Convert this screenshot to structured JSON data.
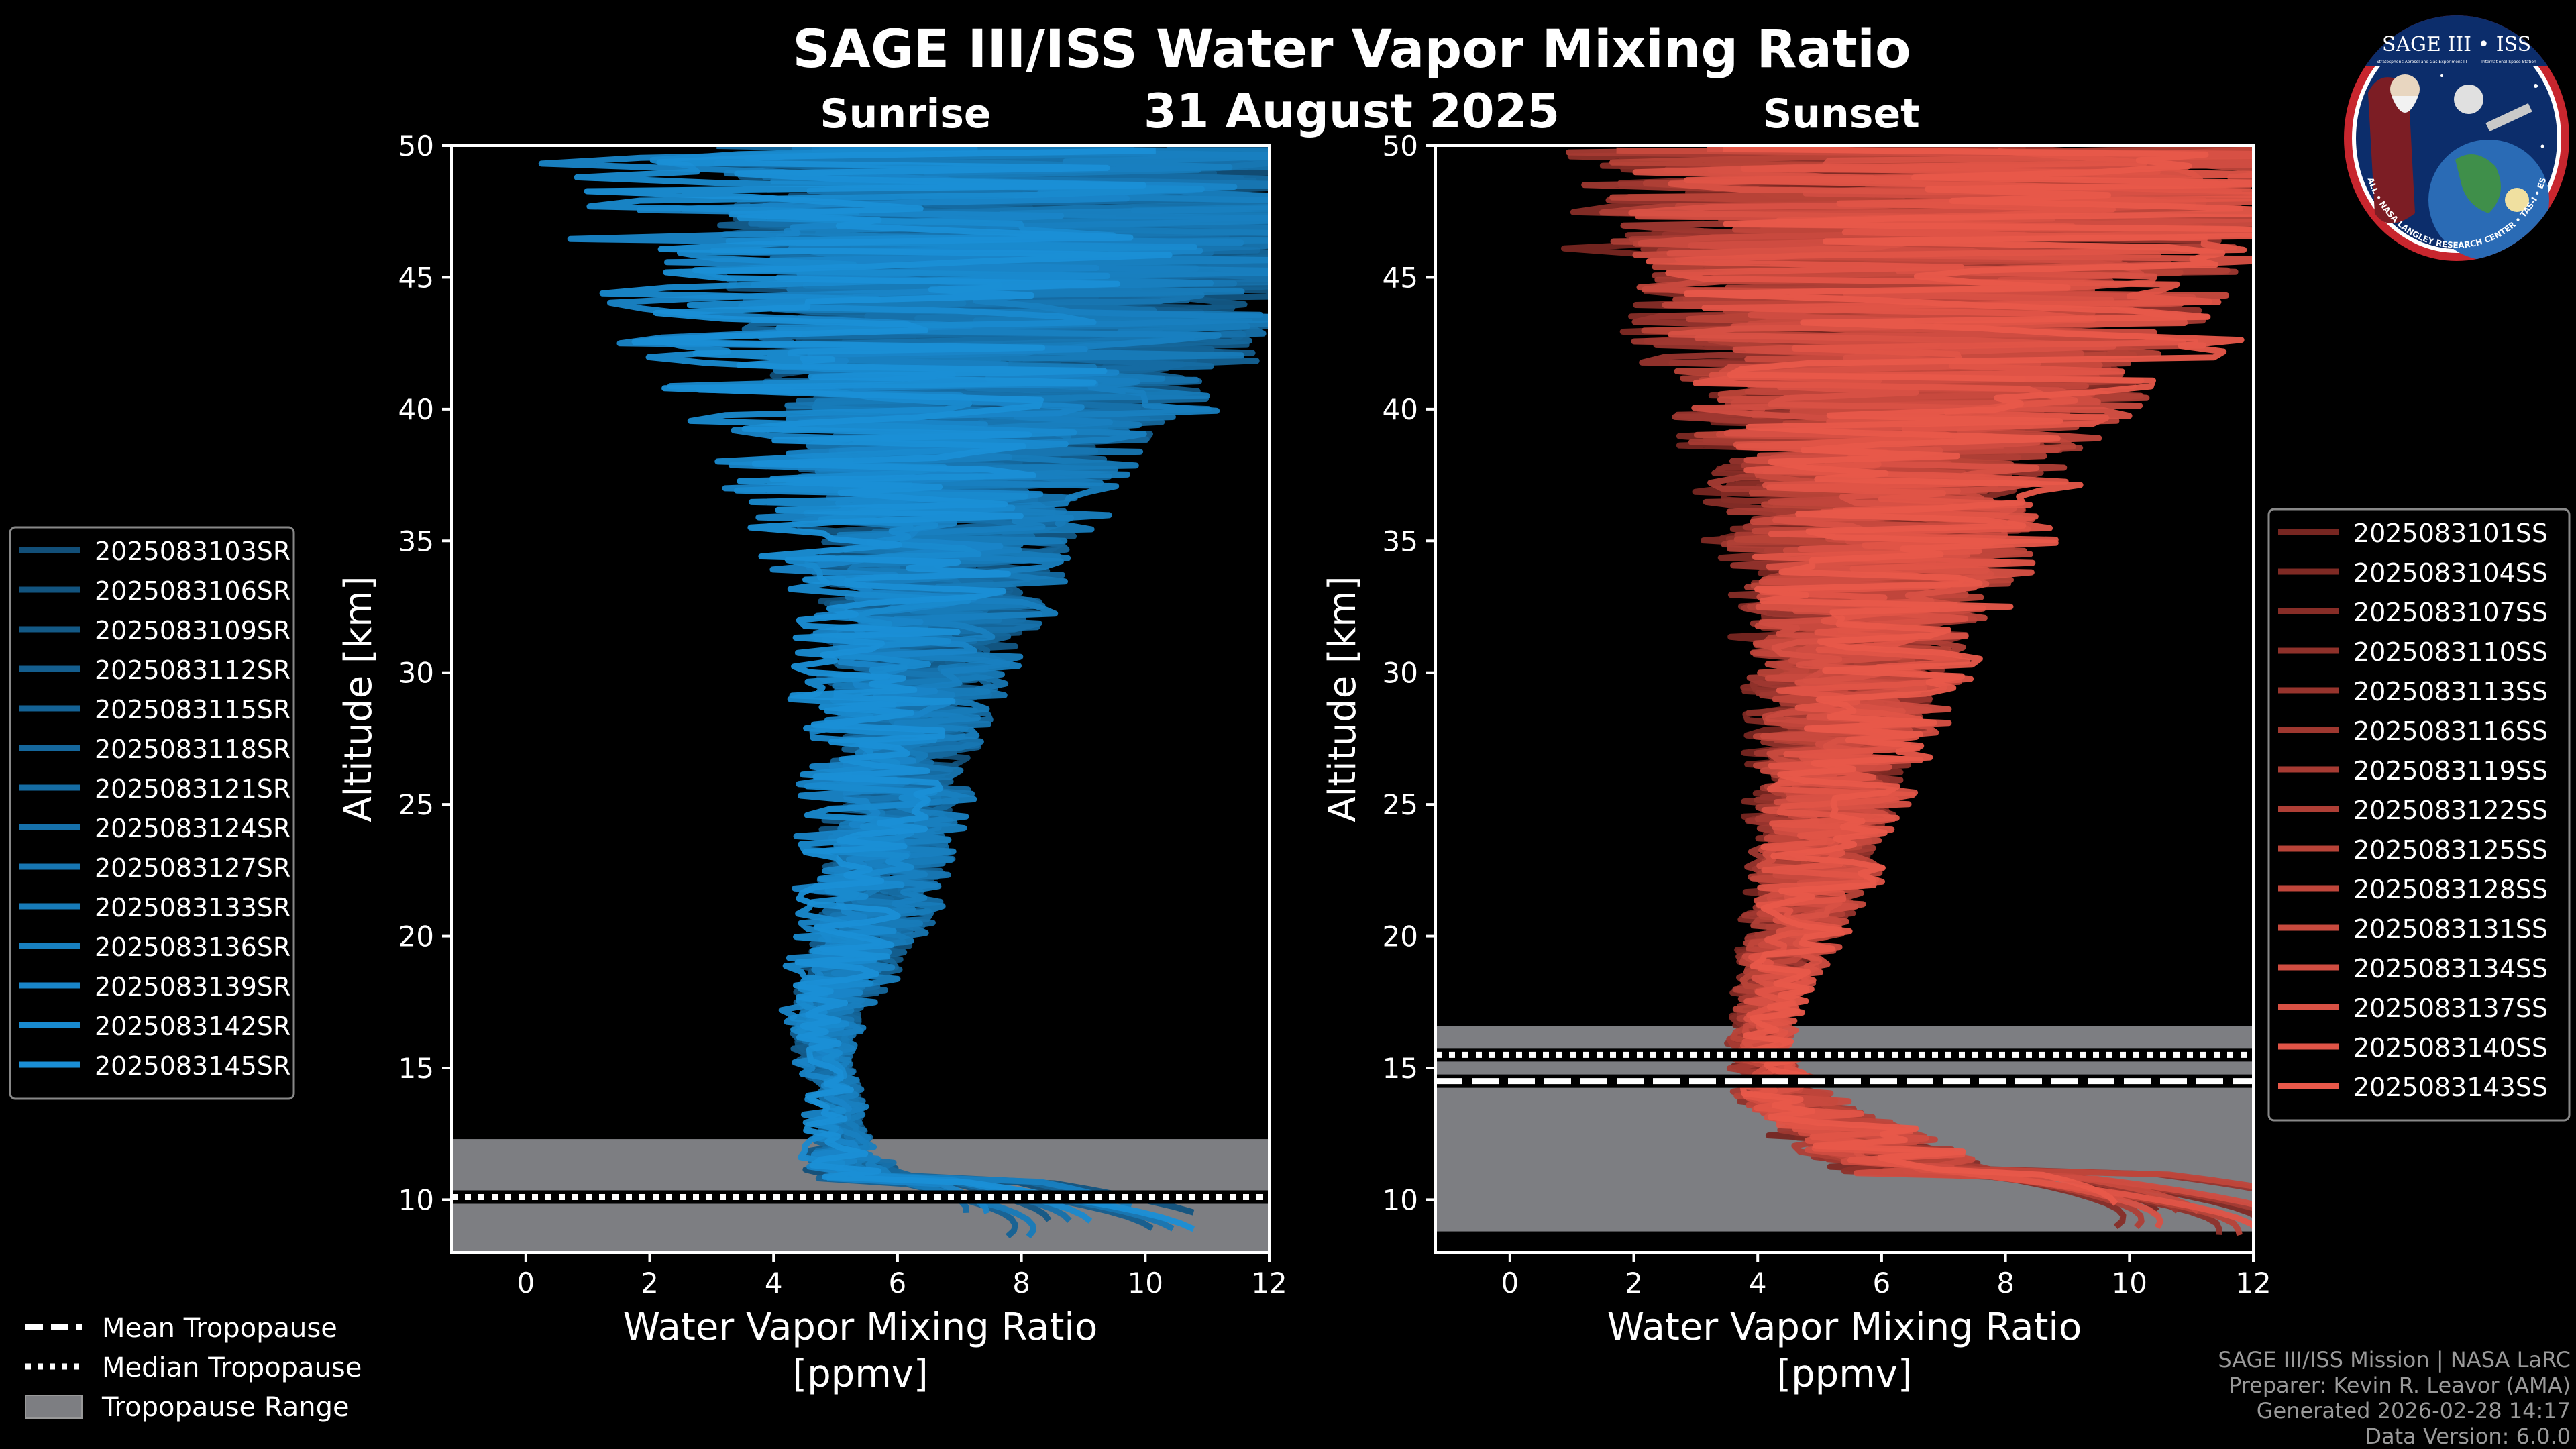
{
  "figure": {
    "title": "SAGE III/ISS Water Vapor Mixing Ratio",
    "date": "31 August 2025",
    "footer": [
      "SAGE III/ISS Mission | NASA LaRC",
      "Preparer: Kevin R. Leavor (AMA)",
      "Generated 2026-02-28 14:17",
      "Data Version: 6.0.0"
    ],
    "logo": {
      "title": "SAGE III • ISS",
      "subtitle_left": "Stratospheric Aerosol and Gas Experiment III",
      "subtitle_right": "International Space Station",
      "ring_text": "BALL • NASA LANGLEY RESEARCH CENTER • TAS-I • ESA"
    }
  },
  "colors": {
    "background": "#000000",
    "sunrise": "#1a8fd6",
    "sunset": "#e8584a",
    "tropopause_band": "#7d7e82",
    "axes": "#ffffff"
  },
  "chart_data": [
    {
      "type": "line",
      "panel": "Sunrise",
      "title": "Sunrise",
      "xlabel": "Water Vapor Mixing Ratio\n[ppmv]",
      "ylabel": "Altitude [km]",
      "xlim": [
        -1.2,
        12
      ],
      "ylim": [
        8,
        50
      ],
      "xticks": [
        0,
        2,
        4,
        6,
        8,
        10,
        12
      ],
      "yticks": [
        10,
        15,
        20,
        25,
        30,
        35,
        40,
        45,
        50
      ],
      "profile_mode": "shaded-series",
      "tropopause": {
        "min": 8,
        "max": 12.3,
        "mean": 10.1,
        "median": 10.1
      },
      "legend_position": "left",
      "series": [
        {
          "name": "2025083103SR"
        },
        {
          "name": "2025083106SR"
        },
        {
          "name": "2025083109SR"
        },
        {
          "name": "2025083112SR"
        },
        {
          "name": "2025083115SR"
        },
        {
          "name": "2025083118SR"
        },
        {
          "name": "2025083121SR"
        },
        {
          "name": "2025083124SR"
        },
        {
          "name": "2025083127SR"
        },
        {
          "name": "2025083133SR"
        },
        {
          "name": "2025083136SR"
        },
        {
          "name": "2025083139SR"
        },
        {
          "name": "2025083142SR"
        },
        {
          "name": "2025083145SR"
        }
      ],
      "median_profile": {
        "alt": [
          8.8,
          10,
          11,
          12,
          13,
          14,
          15,
          16,
          17,
          18,
          19,
          20,
          22,
          25,
          28,
          30,
          32,
          35,
          38,
          40,
          42,
          45,
          48,
          50
        ],
        "x": [
          9.0,
          6.5,
          5.2,
          5.0,
          5.0,
          5.0,
          4.8,
          4.7,
          4.8,
          5.0,
          5.2,
          5.4,
          5.6,
          5.8,
          6.0,
          6.0,
          6.2,
          6.4,
          6.6,
          6.8,
          7.0,
          7.2,
          7.4,
          7.5
        ],
        "spread": [
          0.6,
          1.2,
          0.8,
          0.5,
          0.4,
          0.4,
          0.4,
          0.5,
          0.6,
          0.7,
          0.8,
          0.9,
          1.0,
          1.1,
          1.3,
          1.5,
          1.8,
          2.2,
          2.8,
          3.5,
          4.2,
          5.0,
          5.5,
          6.0
        ]
      }
    },
    {
      "type": "line",
      "panel": "Sunset",
      "title": "Sunset",
      "xlabel": "Water Vapor Mixing Ratio\n[ppmv]",
      "ylabel": "Altitude [km]",
      "xlim": [
        -1.2,
        12
      ],
      "ylim": [
        8,
        50
      ],
      "xticks": [
        0,
        2,
        4,
        6,
        8,
        10,
        12
      ],
      "yticks": [
        10,
        15,
        20,
        25,
        30,
        35,
        40,
        45,
        50
      ],
      "profile_mode": "shaded-series",
      "tropopause": {
        "min": 8.8,
        "max": 16.6,
        "mean": 14.5,
        "median": 15.5
      },
      "legend_position": "right",
      "series": [
        {
          "name": "2025083101SS"
        },
        {
          "name": "2025083104SS"
        },
        {
          "name": "2025083107SS"
        },
        {
          "name": "2025083110SS"
        },
        {
          "name": "2025083113SS"
        },
        {
          "name": "2025083116SS"
        },
        {
          "name": "2025083119SS"
        },
        {
          "name": "2025083122SS"
        },
        {
          "name": "2025083125SS"
        },
        {
          "name": "2025083128SS"
        },
        {
          "name": "2025083131SS"
        },
        {
          "name": "2025083134SS"
        },
        {
          "name": "2025083137SS"
        },
        {
          "name": "2025083140SS"
        },
        {
          "name": "2025083143SS"
        }
      ],
      "median_profile": {
        "alt": [
          9.0,
          10,
          11,
          12,
          13,
          14,
          15,
          16,
          17,
          18,
          19,
          20,
          22,
          25,
          28,
          30,
          32,
          35,
          38,
          40,
          42,
          45,
          48,
          50
        ],
        "x": [
          11.5,
          9.0,
          7.0,
          6.0,
          5.2,
          4.5,
          4.2,
          4.1,
          4.2,
          4.3,
          4.5,
          4.7,
          5.0,
          5.3,
          5.6,
          5.8,
          6.0,
          6.3,
          6.6,
          6.9,
          7.2,
          7.5,
          7.8,
          8.0
        ],
        "spread": [
          0.5,
          1.5,
          1.5,
          1.3,
          1.0,
          0.8,
          0.6,
          0.5,
          0.5,
          0.6,
          0.7,
          0.8,
          1.0,
          1.2,
          1.5,
          1.7,
          2.0,
          2.5,
          3.0,
          3.8,
          4.5,
          5.2,
          5.8,
          6.5
        ]
      }
    }
  ],
  "tropopause_legend": {
    "mean": "Mean Tropopause",
    "median": "Median Tropopause",
    "range": "Tropopause Range"
  }
}
